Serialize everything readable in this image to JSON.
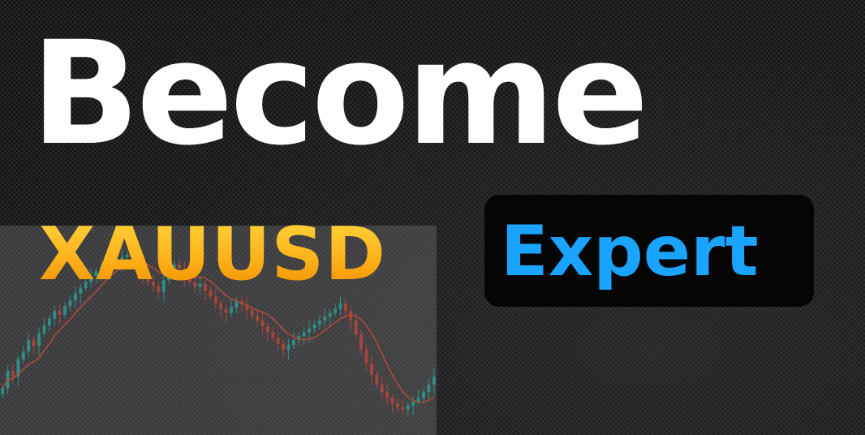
{
  "headline": {
    "line1": "Become",
    "highlight_gold": "XAUUSD",
    "highlight_blue": "Expert"
  },
  "colors": {
    "background": "#0d0d0e",
    "headline": "#ffffff",
    "gold_top": "#ffd23a",
    "gold_bottom": "#f08d00",
    "blue": "#1aa3ff",
    "label_box": "#050505",
    "candle_up": "#2e8f86",
    "candle_down": "#a8453f",
    "moving_average": "#b84a3c"
  },
  "chart": {
    "description_icon": "candlestick-chart",
    "closes": [
      40,
      58,
      52,
      70,
      78,
      90,
      84,
      97,
      105,
      112,
      120,
      116,
      125,
      131,
      138,
      144,
      150,
      156,
      161,
      166,
      170,
      174,
      171,
      176,
      178,
      172,
      165,
      158,
      150,
      146,
      140,
      152,
      160,
      168,
      164,
      156,
      150,
      145,
      148,
      141,
      135,
      128,
      122,
      118,
      124,
      130,
      127,
      121,
      115,
      110,
      104,
      98,
      92,
      86,
      80,
      85,
      90,
      94,
      98,
      102,
      106,
      110,
      114,
      118,
      122,
      128,
      120,
      110,
      96,
      80,
      66,
      54,
      44,
      36,
      30,
      24,
      20,
      18,
      22,
      26,
      30,
      36,
      44,
      52
    ]
  }
}
